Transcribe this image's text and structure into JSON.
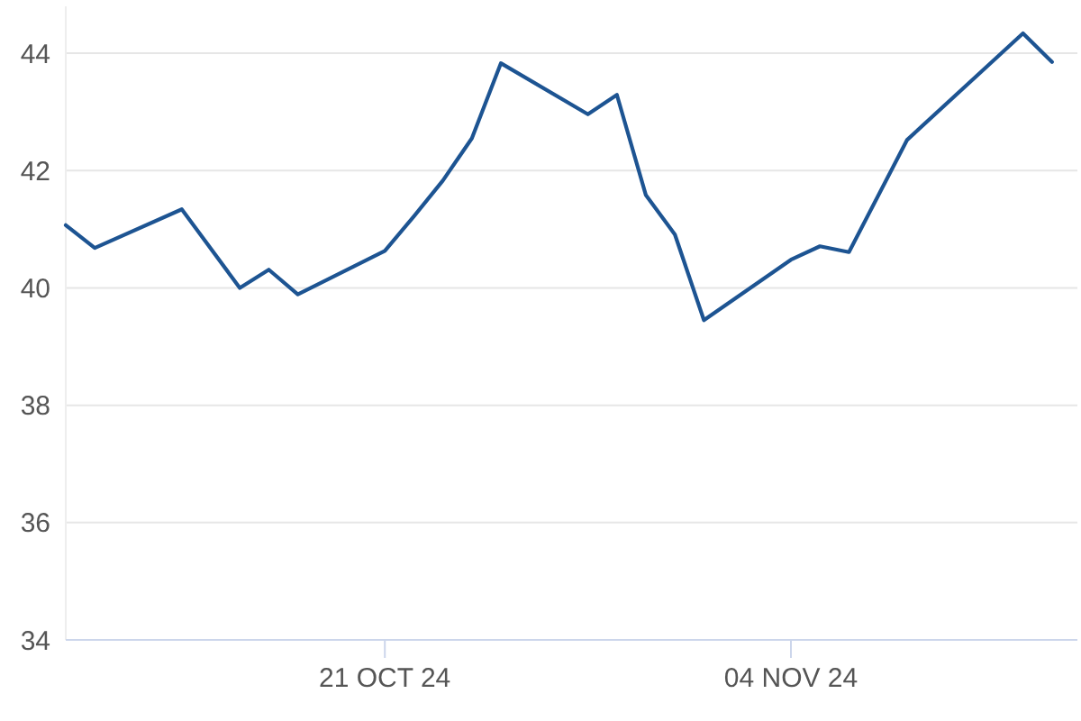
{
  "chart_data": {
    "type": "line",
    "x": [
      "2024-10-10",
      "2024-10-11",
      "2024-10-14",
      "2024-10-16",
      "2024-10-17",
      "2024-10-18",
      "2024-10-21",
      "2024-10-22",
      "2024-10-23",
      "2024-10-24",
      "2024-10-25",
      "2024-10-28",
      "2024-10-29",
      "2024-10-30",
      "2024-10-31",
      "2024-11-01",
      "2024-11-04",
      "2024-11-05",
      "2024-11-06",
      "2024-11-08",
      "2024-11-12",
      "2024-11-13"
    ],
    "series": [
      {
        "color": "#1d5492",
        "values": [
          41.07,
          40.68,
          41.34,
          40.0,
          40.31,
          39.89,
          40.63,
          41.22,
          41.83,
          42.55,
          43.83,
          42.96,
          43.29,
          41.58,
          40.91,
          39.45,
          40.48,
          40.71,
          40.61,
          42.52,
          44.34,
          43.85
        ]
      }
    ],
    "xlim": [
      "2024-10-10",
      "2024-11-14"
    ],
    "xticks": [
      {
        "value": "2024-10-21",
        "label": "21 OCT 24"
      },
      {
        "value": "2024-11-04",
        "label": "04 NOV 24"
      }
    ],
    "ylim": [
      34,
      44.8
    ],
    "yticks": [
      34,
      36,
      38,
      40,
      42,
      44
    ],
    "grid": "y"
  }
}
